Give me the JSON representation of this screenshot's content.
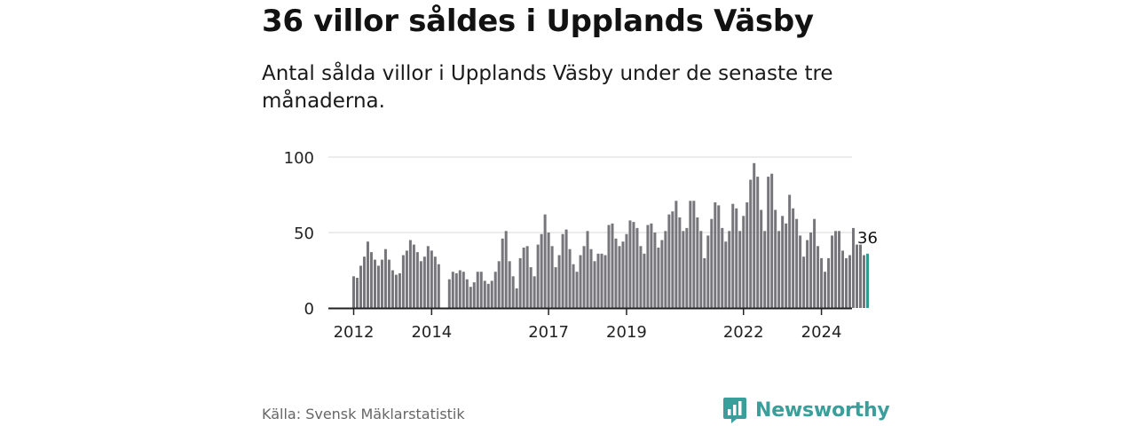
{
  "title": "36 villor såldes i Upplands Väsby",
  "subtitle": "Antal sålda villor i Upplands Väsby under de senaste tre månaderna.",
  "source": "Källa: Svensk Mäklarstatistik",
  "brand": {
    "name": "Newsworthy",
    "logo_icon": "newsworthy-bar-chart-logo-icon"
  },
  "colors": {
    "bar": "#77767b",
    "highlight": "#2a9d8f",
    "grid": "#d9d9d9",
    "axis": "#222222",
    "brand": "#3a9e9a"
  },
  "chart_data": {
    "type": "bar",
    "title": "36 villor såldes i Upplands Väsby",
    "xlabel": "",
    "ylabel": "",
    "ylim": [
      0,
      100
    ],
    "yticks": [
      0,
      50,
      100
    ],
    "xticks": [
      {
        "label": "2012",
        "index": 0
      },
      {
        "label": "2014",
        "index": 22
      },
      {
        "label": "2017",
        "index": 55
      },
      {
        "label": "2019",
        "index": 77
      },
      {
        "label": "2022",
        "index": 110
      },
      {
        "label": "2024",
        "index": 132
      }
    ],
    "grid": true,
    "highlight_label": "36",
    "values": [
      21,
      20,
      28,
      34,
      44,
      37,
      32,
      28,
      32,
      39,
      32,
      25,
      22,
      23,
      35,
      38,
      45,
      42,
      37,
      31,
      34,
      41,
      38,
      34,
      29,
      0,
      0,
      19,
      24,
      23,
      25,
      24,
      19,
      14,
      17,
      24,
      24,
      18,
      16,
      18,
      24,
      31,
      46,
      51,
      31,
      21,
      13,
      33,
      40,
      41,
      27,
      21,
      42,
      49,
      62,
      50,
      41,
      27,
      35,
      49,
      52,
      39,
      29,
      24,
      35,
      41,
      51,
      39,
      31,
      36,
      36,
      35,
      55,
      56,
      46,
      41,
      44,
      49,
      58,
      57,
      53,
      41,
      36,
      55,
      56,
      50,
      40,
      45,
      51,
      62,
      64,
      71,
      60,
      51,
      53,
      71,
      71,
      60,
      51,
      33,
      48,
      59,
      70,
      68,
      53,
      44,
      51,
      69,
      66,
      51,
      61,
      70,
      85,
      96,
      87,
      65,
      51,
      87,
      89,
      65,
      51,
      61,
      56,
      75,
      66,
      59,
      48,
      34,
      45,
      50,
      59,
      41,
      33,
      24,
      33,
      48,
      51,
      51,
      38,
      33,
      35,
      53,
      42,
      42,
      35,
      36
    ]
  }
}
